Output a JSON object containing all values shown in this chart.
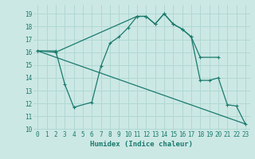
{
  "xlabel": "Humidex (Indice chaleur)",
  "bg_color": "#cce8e4",
  "grid_color": "#b0d8d4",
  "line_color": "#1a7a6e",
  "xlim": [
    -0.5,
    23.5
  ],
  "ylim": [
    10,
    19.5
  ],
  "yticks": [
    10,
    11,
    12,
    13,
    14,
    15,
    16,
    17,
    18,
    19
  ],
  "xticks": [
    0,
    1,
    2,
    3,
    4,
    5,
    6,
    7,
    8,
    9,
    10,
    11,
    12,
    13,
    14,
    15,
    16,
    17,
    18,
    19,
    20,
    21,
    22,
    23
  ],
  "line1_x": [
    0,
    2,
    3,
    4,
    6,
    7,
    8,
    9,
    10,
    11,
    12,
    13,
    14,
    15,
    16,
    17,
    18,
    20
  ],
  "line1_y": [
    16.1,
    16.1,
    13.5,
    11.7,
    12.1,
    14.9,
    16.7,
    17.2,
    17.9,
    18.8,
    18.8,
    18.2,
    19.0,
    18.2,
    17.8,
    17.2,
    15.6,
    15.6
  ],
  "line2_x": [
    0,
    2,
    11,
    12,
    13,
    14,
    15,
    16,
    17,
    18,
    19,
    20,
    21,
    22,
    23
  ],
  "line2_y": [
    16.1,
    16.0,
    18.8,
    18.8,
    18.2,
    19.0,
    18.2,
    17.8,
    17.2,
    13.8,
    13.8,
    14.0,
    11.9,
    11.8,
    10.4
  ],
  "line3_x": [
    0,
    23
  ],
  "line3_y": [
    16.1,
    10.4
  ]
}
